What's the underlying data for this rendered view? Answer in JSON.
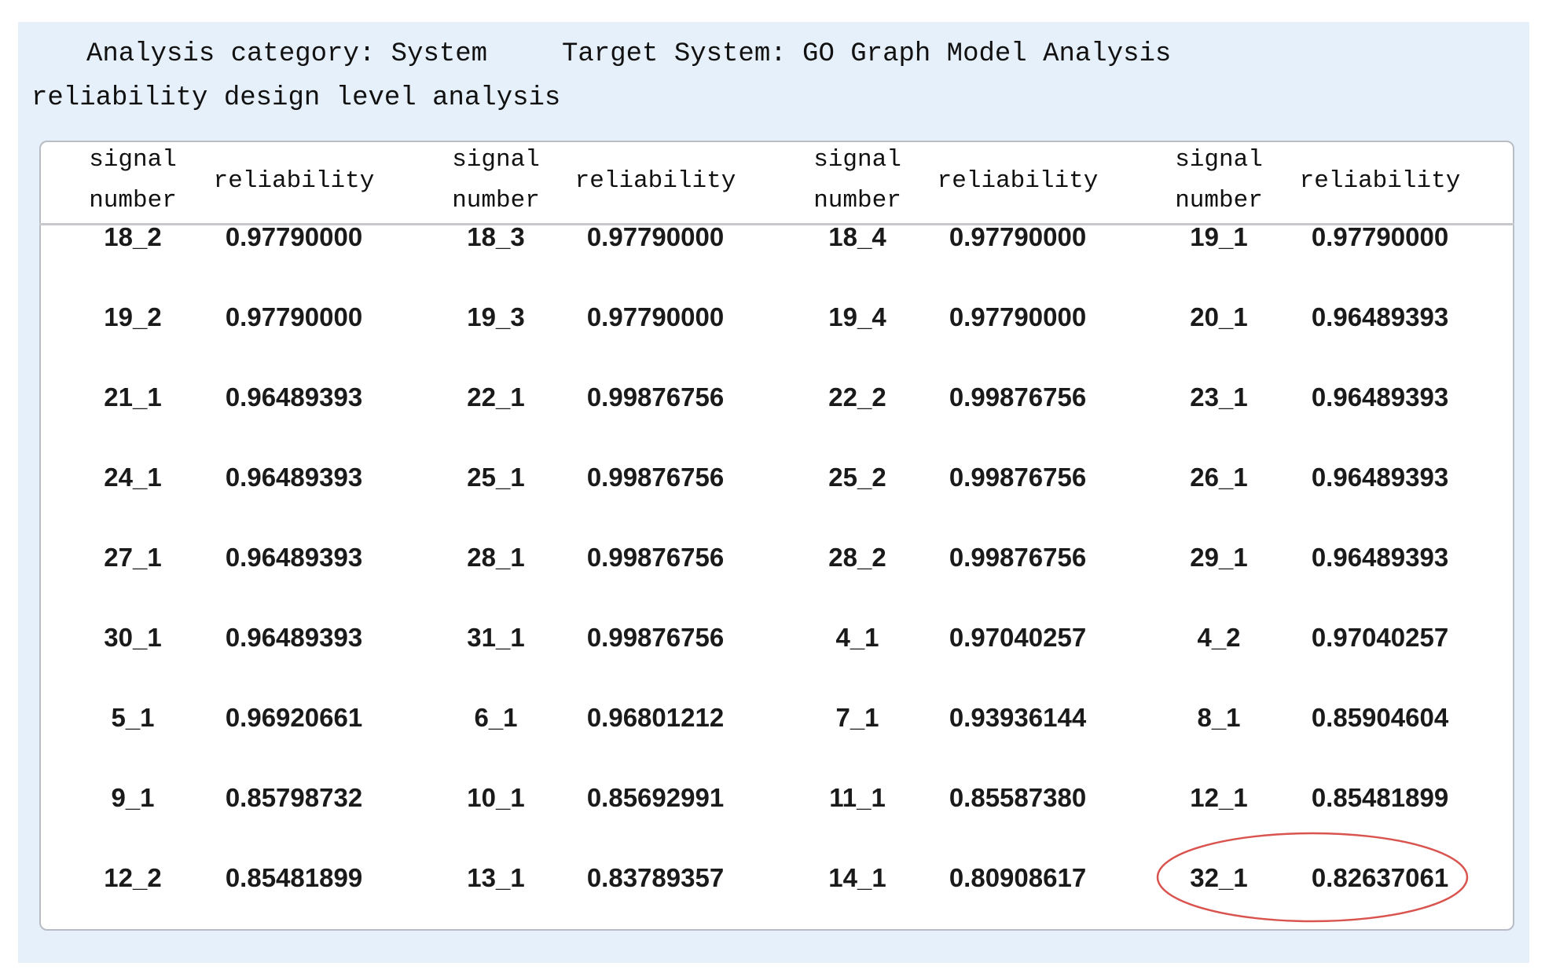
{
  "header": {
    "category_line1": "Analysis category: System",
    "target": "Target System: GO Graph Model Analysis",
    "category_line2": "reliability design level analysis"
  },
  "table": {
    "columns": [
      "signal number",
      "reliability",
      "signal number",
      "reliability",
      "signal number",
      "reliability",
      "signal number",
      "reliability"
    ],
    "rows": [
      [
        "18_2",
        "0.97790000",
        "18_3",
        "0.97790000",
        "18_4",
        "0.97790000",
        "19_1",
        "0.97790000"
      ],
      [
        "19_2",
        "0.97790000",
        "19_3",
        "0.97790000",
        "19_4",
        "0.97790000",
        "20_1",
        "0.96489393"
      ],
      [
        "21_1",
        "0.96489393",
        "22_1",
        "0.99876756",
        "22_2",
        "0.99876756",
        "23_1",
        "0.96489393"
      ],
      [
        "24_1",
        "0.96489393",
        "25_1",
        "0.99876756",
        "25_2",
        "0.99876756",
        "26_1",
        "0.96489393"
      ],
      [
        "27_1",
        "0.96489393",
        "28_1",
        "0.99876756",
        "28_2",
        "0.99876756",
        "29_1",
        "0.96489393"
      ],
      [
        "30_1",
        "0.96489393",
        "31_1",
        "0.99876756",
        "4_1",
        "0.97040257",
        "4_2",
        "0.97040257"
      ],
      [
        "5_1",
        "0.96920661",
        "6_1",
        "0.96801212",
        "7_1",
        "0.93936144",
        "8_1",
        "0.85904604"
      ],
      [
        "9_1",
        "0.85798732",
        "10_1",
        "0.85692991",
        "11_1",
        "0.85587380",
        "12_1",
        "0.85481899"
      ],
      [
        "12_2",
        "0.85481899",
        "13_1",
        "0.83789357",
        "14_1",
        "0.80908617",
        "32_1",
        "0.82637061"
      ]
    ]
  }
}
